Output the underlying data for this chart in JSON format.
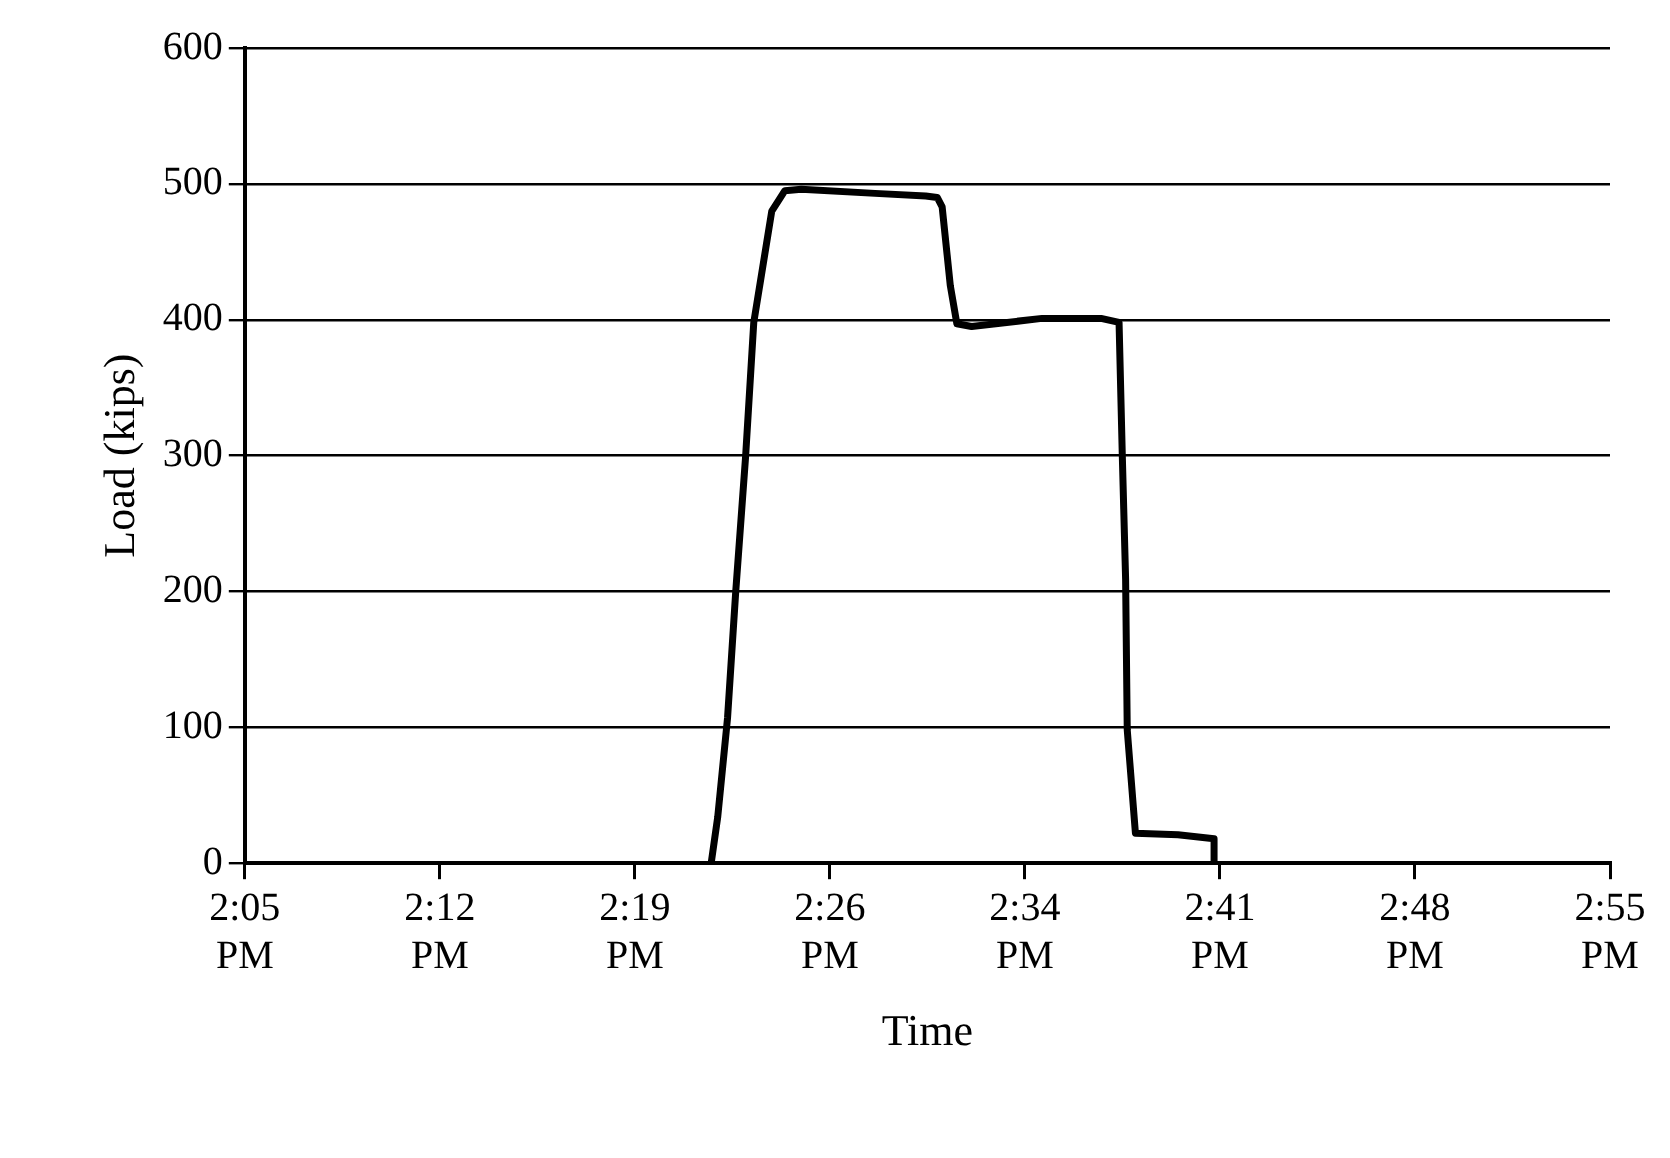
{
  "chart_data": {
    "type": "line",
    "xlabel": "Time",
    "ylabel": "Load (kips)",
    "x": [
      14.368,
      14.372,
      14.378,
      14.383,
      14.389,
      14.394,
      14.405,
      14.413,
      14.423,
      14.468,
      14.499,
      14.506,
      14.509,
      14.514,
      14.518,
      14.527,
      14.57,
      14.606,
      14.617,
      14.619,
      14.621,
      14.622,
      14.627,
      14.653,
      14.675,
      14.675
    ],
    "series": [
      {
        "color": "#000000",
        "values": [
          0,
          34,
          107,
          200,
          299,
          398,
          480,
          495,
          496,
          493,
          491,
          490,
          483,
          425,
          397,
          395,
          401,
          401,
          398,
          299,
          209,
          98,
          22,
          21,
          18,
          0
        ]
      }
    ],
    "xlim": [
      14.0833,
      14.9167
    ],
    "xticks": [
      {
        "value": 14.0833,
        "label": "2:05 PM"
      },
      {
        "value": 14.2024,
        "label": "2:12 PM"
      },
      {
        "value": 14.3214,
        "label": "2:19 PM"
      },
      {
        "value": 14.4405,
        "label": "2:26 PM"
      },
      {
        "value": 14.5595,
        "label": "2:34 PM"
      },
      {
        "value": 14.6786,
        "label": "2:41 PM"
      },
      {
        "value": 14.7976,
        "label": "2:48 PM"
      },
      {
        "value": 14.9167,
        "label": "2:55 PM"
      }
    ],
    "ylim": [
      0,
      600
    ],
    "yticks": [
      0,
      100,
      200,
      300,
      400,
      500,
      600
    ],
    "grid": "y",
    "legend": false,
    "marker": "none",
    "line_style": "solid"
  }
}
